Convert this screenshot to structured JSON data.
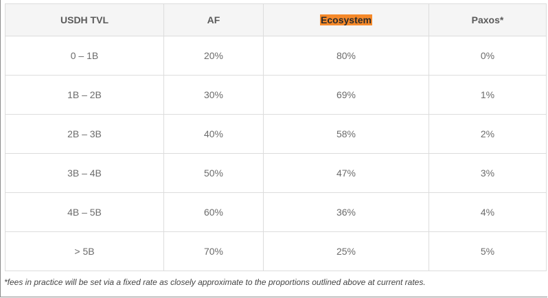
{
  "table": {
    "headers": [
      "USDH TVL",
      "AF",
      "Ecosystem",
      "Paxos*"
    ],
    "highlighted_header_index": 2,
    "rows": [
      [
        "0 – 1B",
        "20%",
        "80%",
        "0%"
      ],
      [
        "1B – 2B",
        "30%",
        "69%",
        "1%"
      ],
      [
        "2B – 3B",
        "40%",
        "58%",
        "2%"
      ],
      [
        "3B – 4B",
        "50%",
        "47%",
        "3%"
      ],
      [
        "4B – 5B",
        "60%",
        "36%",
        "4%"
      ],
      [
        "> 5B",
        "70%",
        "25%",
        "5%"
      ]
    ]
  },
  "footnote": "*fees in practice will be set via a fixed rate as closely approximate to the proportions outlined above at current rates.",
  "colors": {
    "highlight": "#f5892a",
    "header_bg": "#f5f5f5",
    "border": "#dcdcdc"
  }
}
